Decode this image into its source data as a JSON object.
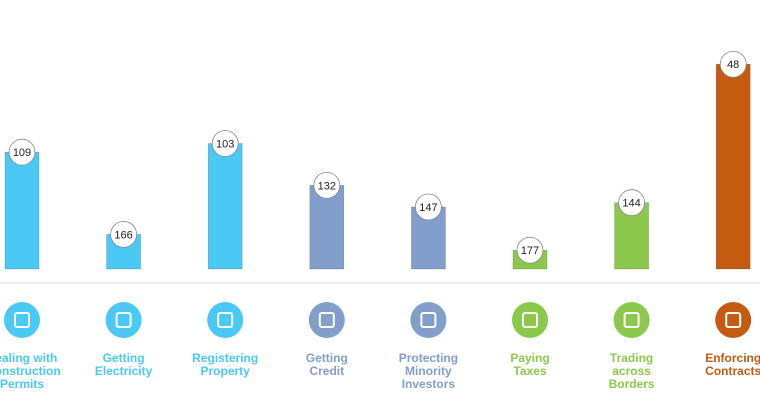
{
  "chart_data": {
    "type": "bar",
    "categories": [
      "Dealing with Construction Permits",
      "Getting Electricity",
      "Registering Property",
      "Getting Credit",
      "Protecting Minority Investors",
      "Paying Taxes",
      "Trading across Borders",
      "Enforcing Contracts"
    ],
    "values": [
      109,
      166,
      103,
      132,
      147,
      177,
      144,
      48
    ],
    "colors": [
      "#4ac9f5",
      "#4ac9f5",
      "#4ac9f5",
      "#829fcb",
      "#829fcb",
      "#8cc84b",
      "#8cc84b",
      "#c55a11"
    ],
    "ylim": [
      190,
      0
    ]
  }
}
